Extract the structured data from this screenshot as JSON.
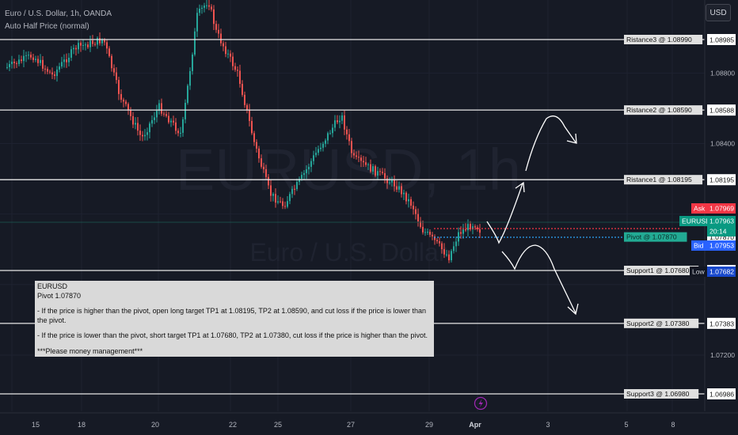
{
  "header": {
    "symbol_line": "Euro / U.S. Dollar, 1h, OANDA",
    "indicator": "Auto Half Price (normal)"
  },
  "currency_button": "USD",
  "watermark": {
    "big": "EURUSD, 1h",
    "small": "Euro / U.S. Dollar"
  },
  "levels": [
    {
      "label": "Ristance3 @ 1.08990",
      "price": 1.0899,
      "axis": "1.08985"
    },
    {
      "label": "Ristance2 @ 1.08590",
      "price": 1.0859,
      "axis": "1.08588"
    },
    {
      "label": "Ristance1 @ 1.08195",
      "price": 1.08195,
      "axis": "1.08195"
    },
    {
      "label": "Pivot @ 1.07870",
      "price": 1.0787,
      "axis": "1.07870"
    },
    {
      "label": "Support1 @ 1.07680",
      "price": 1.0768,
      "axis": "1.07681"
    },
    {
      "label": "Support2 @ 1.07380",
      "price": 1.0738,
      "axis": "1.07383"
    },
    {
      "label": "Support3 @ 1.06980",
      "price": 1.0698,
      "axis": "1.06986"
    }
  ],
  "axis_ticks": [
    "1.08800",
    "1.08400",
    "1.07200"
  ],
  "price_tags": {
    "ask_label": "Ask",
    "ask": "1.07969",
    "symbol": "EURUSD",
    "last": "1.07963",
    "countdown": "20:14",
    "bid_label": "Bid",
    "bid": "1.07953",
    "low_label": "Low",
    "low": "1.07682"
  },
  "x_axis": [
    "15",
    "18",
    "20",
    "22",
    "25",
    "27",
    "29",
    "Apr",
    "3",
    "5",
    "8"
  ],
  "note": {
    "title": "EURUSD",
    "pivot": "Pivot 1.07870",
    "long": "- If the price is higher than the pivot, open long target TP1 at 1.08195, TP2 at 1.08590, and cut loss if the price is lower than the pivot.",
    "short": "- If the price is lower than the pivot, short target TP1 at 1.07680, TP2 at 1.07380, cut loss if the price is higher than the pivot.",
    "footer": "***Please money management***"
  },
  "colors": {
    "up": "#26a69a",
    "down": "#ef5350",
    "ask": "#f23645",
    "bid": "#2962ff",
    "last": "#089981",
    "pivot_tag": "#22ab94"
  }
}
